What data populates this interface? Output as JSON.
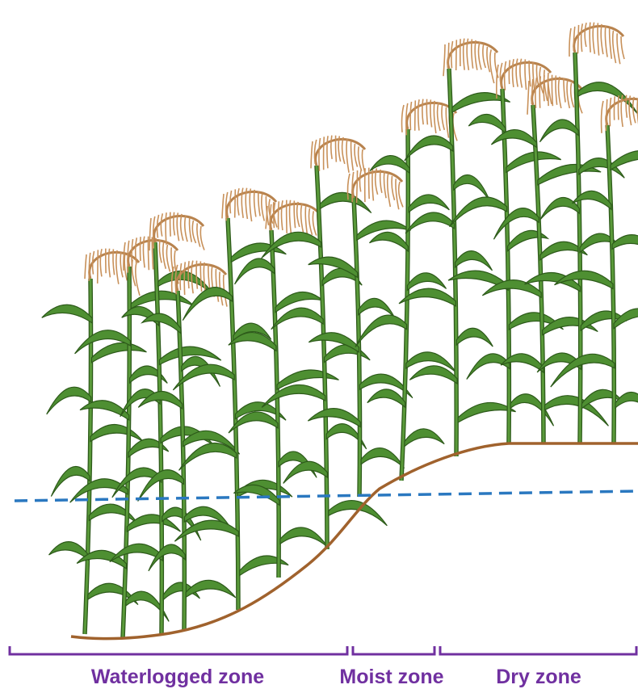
{
  "zones": [
    "Waterlogged zone",
    "Moist zone",
    "Dry zone"
  ]
}
